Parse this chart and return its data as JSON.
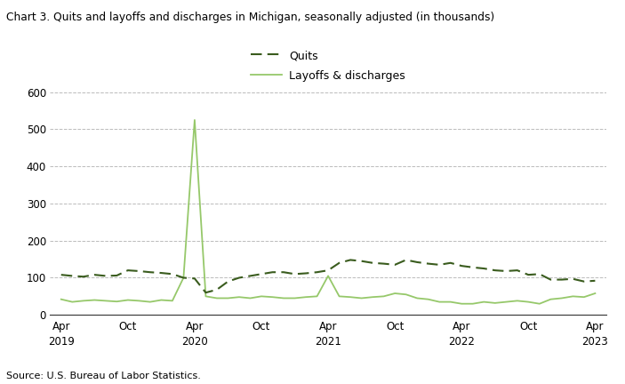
{
  "title": "Chart 3. Quits and layoffs and discharges in Michigan, seasonally adjusted (in thousands)",
  "source": "Source: U.S. Bureau of Labor Statistics.",
  "quits_label": "Quits",
  "layoffs_label": "Layoffs & discharges",
  "quits_color": "#3a5c1e",
  "layoffs_color": "#96c86a",
  "ylim": [
    0,
    600
  ],
  "yticks": [
    0,
    100,
    200,
    300,
    400,
    500,
    600
  ],
  "quits": [
    108,
    105,
    103,
    108,
    105,
    106,
    120,
    118,
    115,
    113,
    110,
    100,
    98,
    60,
    68,
    90,
    100,
    105,
    110,
    115,
    115,
    110,
    112,
    115,
    120,
    140,
    148,
    145,
    140,
    138,
    135,
    148,
    142,
    138,
    135,
    140,
    132,
    128,
    125,
    120,
    118,
    120,
    108,
    110,
    95,
    95,
    97,
    90,
    92
  ],
  "layoffs": [
    42,
    35,
    38,
    40,
    38,
    36,
    40,
    38,
    35,
    40,
    38,
    100,
    525,
    50,
    45,
    45,
    48,
    45,
    50,
    48,
    45,
    45,
    48,
    50,
    105,
    50,
    48,
    45,
    48,
    50,
    58,
    55,
    45,
    42,
    35,
    35,
    30,
    30,
    35,
    32,
    35,
    38,
    35,
    30,
    42,
    45,
    50,
    48,
    58
  ],
  "xtick_positions": [
    0,
    6,
    12,
    18,
    24,
    30,
    36,
    42,
    48
  ],
  "xtick_labels": [
    "Apr\n2019",
    "Oct",
    "Apr\n2020",
    "Oct",
    "Apr\n2021",
    "Oct",
    "Apr\n2022",
    "Oct",
    "Apr\n2023"
  ]
}
